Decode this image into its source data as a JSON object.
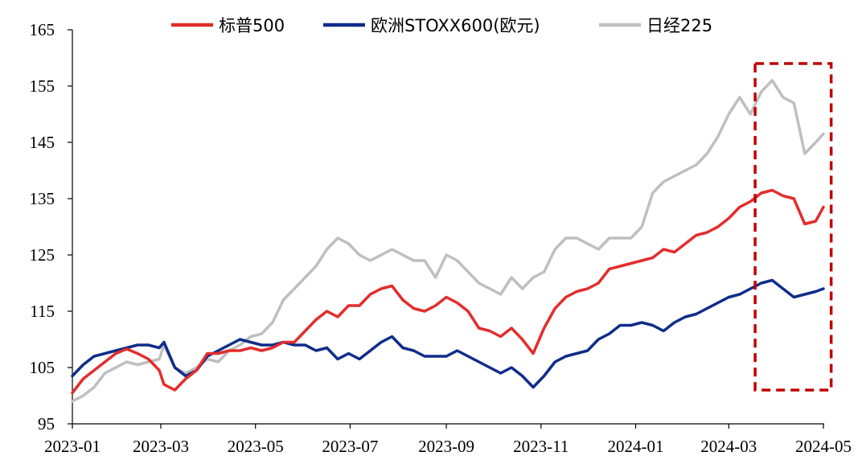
{
  "chart_data": {
    "type": "line",
    "title": "",
    "xlabel": "",
    "ylabel": "",
    "ylim": [
      95,
      165
    ],
    "yticks": [
      "95",
      "105",
      "115",
      "125",
      "135",
      "145",
      "155",
      "165"
    ],
    "xticks": [
      "2023-01",
      "2023-03",
      "2023-05",
      "2023-07",
      "2023-09",
      "2023-11",
      "2024-01",
      "2024-03",
      "2024-05"
    ],
    "xtick_dates": [
      "2023-01-03",
      "2023-03-01",
      "2023-05-01",
      "2023-07-01",
      "2023-09-01",
      "2023-11-01",
      "2024-01-01",
      "2024-03-01",
      "2024-05-01"
    ],
    "legend_position": "top",
    "grid": false,
    "highlight_box": {
      "x_from": "2024-03-18",
      "x_to": "2024-05-06",
      "y_from": 101,
      "y_to": 159,
      "color": "#C00000",
      "style": "dashed"
    },
    "series": [
      {
        "name": "标普500",
        "color": "#E32D2D",
        "x": [
          "2023-01-03",
          "2023-01-10",
          "2023-01-17",
          "2023-01-24",
          "2023-01-31",
          "2023-02-07",
          "2023-02-14",
          "2023-02-21",
          "2023-02-28",
          "2023-03-03",
          "2023-03-10",
          "2023-03-17",
          "2023-03-24",
          "2023-03-31",
          "2023-04-07",
          "2023-04-14",
          "2023-04-21",
          "2023-04-28",
          "2023-05-05",
          "2023-05-12",
          "2023-05-19",
          "2023-05-26",
          "2023-06-02",
          "2023-06-09",
          "2023-06-16",
          "2023-06-23",
          "2023-06-30",
          "2023-07-07",
          "2023-07-14",
          "2023-07-21",
          "2023-07-28",
          "2023-08-04",
          "2023-08-11",
          "2023-08-18",
          "2023-08-25",
          "2023-09-01",
          "2023-09-08",
          "2023-09-15",
          "2023-09-22",
          "2023-09-29",
          "2023-10-06",
          "2023-10-13",
          "2023-10-20",
          "2023-10-27",
          "2023-11-03",
          "2023-11-10",
          "2023-11-17",
          "2023-11-24",
          "2023-12-01",
          "2023-12-08",
          "2023-12-15",
          "2023-12-22",
          "2023-12-29",
          "2024-01-05",
          "2024-01-12",
          "2024-01-19",
          "2024-01-26",
          "2024-02-02",
          "2024-02-09",
          "2024-02-16",
          "2024-02-23",
          "2024-03-01",
          "2024-03-08",
          "2024-03-15",
          "2024-03-22",
          "2024-03-29",
          "2024-04-05",
          "2024-04-12",
          "2024-04-19",
          "2024-04-26",
          "2024-05-01"
        ],
        "values": [
          100.5,
          103,
          104.5,
          106,
          107.5,
          108.3,
          107.5,
          106.5,
          104.5,
          102,
          101,
          103,
          104.5,
          107.5,
          107.5,
          108,
          108,
          108.5,
          108,
          108.5,
          109.5,
          109.5,
          111.5,
          113.5,
          115,
          114,
          116,
          116,
          118,
          119,
          119.5,
          117,
          115.5,
          115,
          116,
          117.5,
          116.5,
          115,
          112,
          111.5,
          110.5,
          112,
          110,
          107.5,
          112,
          115.5,
          117.5,
          118.5,
          119,
          120,
          122.5,
          123,
          123.5,
          124,
          124.5,
          126,
          125.5,
          127,
          128.5,
          129,
          130,
          131.5,
          133.5,
          134.5,
          136,
          136.5,
          135.5,
          135,
          130.5,
          131,
          133.5
        ]
      },
      {
        "name": "欧洲STOXX600(欧元)",
        "color": "#0E2D8A",
        "x": [
          "2023-01-03",
          "2023-01-10",
          "2023-01-17",
          "2023-01-24",
          "2023-01-31",
          "2023-02-07",
          "2023-02-14",
          "2023-02-21",
          "2023-02-28",
          "2023-03-03",
          "2023-03-10",
          "2023-03-17",
          "2023-03-24",
          "2023-03-31",
          "2023-04-07",
          "2023-04-14",
          "2023-04-21",
          "2023-04-28",
          "2023-05-05",
          "2023-05-12",
          "2023-05-19",
          "2023-05-26",
          "2023-06-02",
          "2023-06-09",
          "2023-06-16",
          "2023-06-23",
          "2023-06-30",
          "2023-07-07",
          "2023-07-14",
          "2023-07-21",
          "2023-07-28",
          "2023-08-04",
          "2023-08-11",
          "2023-08-18",
          "2023-08-25",
          "2023-09-01",
          "2023-09-08",
          "2023-09-15",
          "2023-09-22",
          "2023-09-29",
          "2023-10-06",
          "2023-10-13",
          "2023-10-20",
          "2023-10-27",
          "2023-11-03",
          "2023-11-10",
          "2023-11-17",
          "2023-11-24",
          "2023-12-01",
          "2023-12-08",
          "2023-12-15",
          "2023-12-22",
          "2023-12-29",
          "2024-01-05",
          "2024-01-12",
          "2024-01-19",
          "2024-01-26",
          "2024-02-02",
          "2024-02-09",
          "2024-02-16",
          "2024-02-23",
          "2024-03-01",
          "2024-03-08",
          "2024-03-15",
          "2024-03-22",
          "2024-03-29",
          "2024-04-05",
          "2024-04-12",
          "2024-04-19",
          "2024-04-26",
          "2024-05-01"
        ],
        "values": [
          103.5,
          105.5,
          107,
          107.5,
          108,
          108.5,
          109,
          109,
          108.5,
          109.5,
          105,
          103.5,
          104.5,
          107,
          108,
          109,
          110,
          109.5,
          109,
          109,
          109.5,
          109,
          109,
          108,
          108.5,
          106.5,
          107.5,
          106.5,
          108,
          109.5,
          110.5,
          108.5,
          108,
          107,
          107,
          107,
          108,
          107,
          106,
          105,
          104,
          105,
          103.5,
          101.5,
          103.5,
          106,
          107,
          107.5,
          108,
          110,
          111,
          112.5,
          112.5,
          113,
          112.5,
          111.5,
          113,
          114,
          114.5,
          115.5,
          116.5,
          117.5,
          118,
          119,
          120,
          120.5,
          119,
          117.5,
          118,
          118.5,
          119
        ]
      },
      {
        "name": "日经225",
        "color": "#BFBFBF",
        "x": [
          "2023-01-03",
          "2023-01-10",
          "2023-01-17",
          "2023-01-24",
          "2023-01-31",
          "2023-02-07",
          "2023-02-14",
          "2023-02-21",
          "2023-02-28",
          "2023-03-03",
          "2023-03-10",
          "2023-03-17",
          "2023-03-24",
          "2023-03-31",
          "2023-04-07",
          "2023-04-14",
          "2023-04-21",
          "2023-04-28",
          "2023-05-05",
          "2023-05-12",
          "2023-05-19",
          "2023-05-26",
          "2023-06-02",
          "2023-06-09",
          "2023-06-16",
          "2023-06-23",
          "2023-06-30",
          "2023-07-07",
          "2023-07-14",
          "2023-07-21",
          "2023-07-28",
          "2023-08-04",
          "2023-08-11",
          "2023-08-18",
          "2023-08-25",
          "2023-09-01",
          "2023-09-08",
          "2023-09-15",
          "2023-09-22",
          "2023-09-29",
          "2023-10-06",
          "2023-10-13",
          "2023-10-20",
          "2023-10-27",
          "2023-11-03",
          "2023-11-10",
          "2023-11-17",
          "2023-11-24",
          "2023-12-01",
          "2023-12-08",
          "2023-12-15",
          "2023-12-22",
          "2023-12-29",
          "2024-01-05",
          "2024-01-12",
          "2024-01-19",
          "2024-01-26",
          "2024-02-02",
          "2024-02-09",
          "2024-02-16",
          "2024-02-23",
          "2024-03-01",
          "2024-03-08",
          "2024-03-15",
          "2024-03-22",
          "2024-03-29",
          "2024-04-05",
          "2024-04-12",
          "2024-04-19",
          "2024-04-26",
          "2024-05-01"
        ],
        "values": [
          99,
          100,
          101.5,
          104,
          105,
          106,
          105.5,
          106,
          106.5,
          109,
          105,
          104,
          105,
          106.5,
          106,
          108,
          109,
          110.5,
          111,
          113,
          117,
          119,
          121,
          123,
          126,
          128,
          127,
          125,
          124,
          125,
          126,
          125,
          124,
          124,
          121,
          125,
          124,
          122,
          120,
          119,
          118,
          121,
          119,
          121,
          122,
          126,
          128,
          128,
          127,
          126,
          128,
          128,
          128,
          130,
          136,
          138,
          139,
          140,
          141,
          143,
          146,
          150,
          153,
          150,
          154,
          156,
          153,
          152,
          143,
          145,
          146.5
        ]
      }
    ]
  }
}
